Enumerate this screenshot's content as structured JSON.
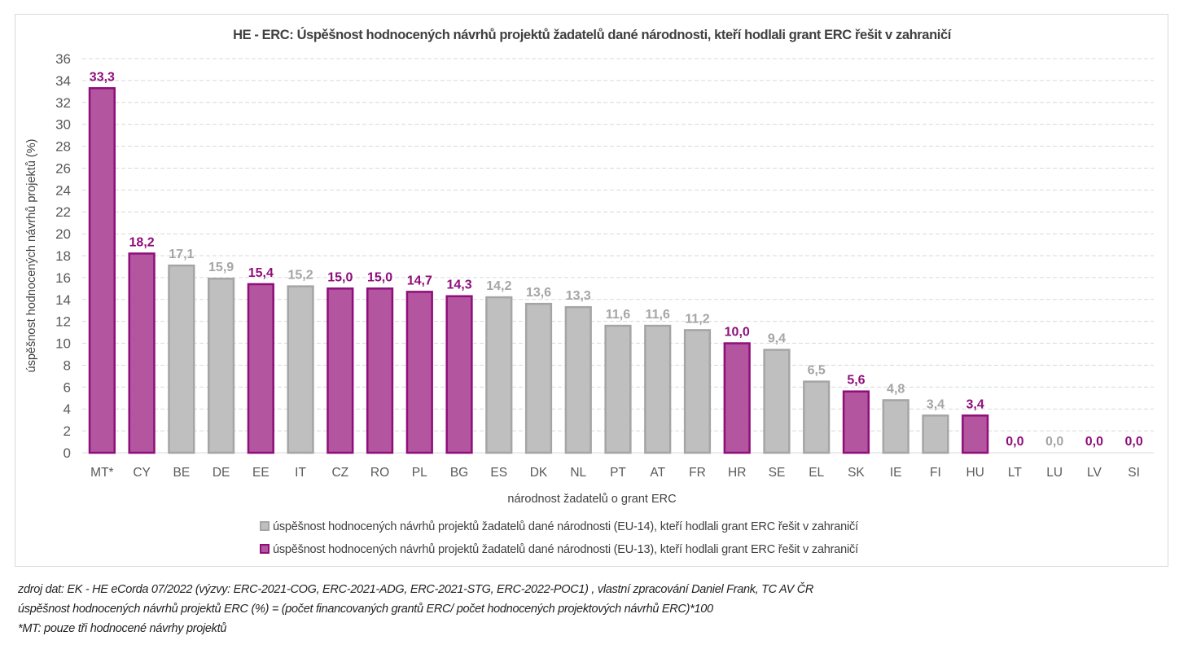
{
  "chart_data": {
    "type": "bar",
    "title": "HE - ERC: Úspěšnost hodnocených návrhů projektů žadatelů dané národnosti, kteří hodlali grant ERC řešit v zahraničí",
    "xlabel": "národnost žadatelů o grant ERC",
    "ylabel": "úspěšnost hodnocených návrhů projektů (%)",
    "ylim": [
      0,
      36
    ],
    "ytick_step": 2,
    "grid": true,
    "legend_position": "bottom",
    "categories": [
      "MT*",
      "CY",
      "BE",
      "DE",
      "EE",
      "IT",
      "CZ",
      "RO",
      "PL",
      "BG",
      "ES",
      "DK",
      "NL",
      "PT",
      "AT",
      "FR",
      "HR",
      "SE",
      "EL",
      "SK",
      "IE",
      "FI",
      "HU",
      "LT",
      "LU",
      "LV",
      "SI"
    ],
    "values": [
      33.3,
      18.2,
      17.1,
      15.9,
      15.4,
      15.2,
      15.0,
      15.0,
      14.7,
      14.3,
      14.2,
      13.6,
      13.3,
      11.6,
      11.6,
      11.2,
      10.0,
      9.4,
      6.5,
      5.6,
      4.8,
      3.4,
      3.4,
      0.0,
      0.0,
      0.0,
      0.0
    ],
    "value_labels": [
      "33,3",
      "18,2",
      "17,1",
      "15,9",
      "15,4",
      "15,2",
      "15,0",
      "15,0",
      "14,7",
      "14,3",
      "14,2",
      "13,6",
      "13,3",
      "11,6",
      "11,6",
      "11,2",
      "10,0",
      "9,4",
      "6,5",
      "5,6",
      "4,8",
      "3,4",
      "3,4",
      "0,0",
      "0,0",
      "0,0",
      "0,0"
    ],
    "groups": [
      "EU-13",
      "EU-13",
      "EU-14",
      "EU-14",
      "EU-13",
      "EU-14",
      "EU-13",
      "EU-13",
      "EU-13",
      "EU-13",
      "EU-14",
      "EU-14",
      "EU-14",
      "EU-14",
      "EU-14",
      "EU-14",
      "EU-13",
      "EU-14",
      "EU-14",
      "EU-13",
      "EU-14",
      "EU-14",
      "EU-13",
      "EU-13",
      "EU-14",
      "EU-13",
      "EU-13"
    ],
    "series": [
      {
        "name": "úspěšnost hodnocených návrhů projektů žadatelů dané národnosti (EU-14), kteří hodlali grant ERC řešit v zahraničí",
        "key": "EU-14",
        "fill": "#bfbfbf",
        "stroke": "#a5a5a5",
        "label_color": "#a5a5a5"
      },
      {
        "name": "úspěšnost hodnocených návrhů projektů žadatelů dané národnosti (EU-13), kteří hodlali grant ERC řešit v zahraničí",
        "key": "EU-13",
        "fill": "#b4559f",
        "stroke": "#8e0e7a",
        "label_color": "#8e0e7a"
      }
    ]
  },
  "footnotes": [
    "zdroj dat: EK - HE eCorda 07/2022 (výzvy: ERC-2021-COG, ERC-2021-ADG, ERC-2021-STG, ERC-2022-POC1) , vlastní zpracování Daniel Frank, TC AV ČR",
    "úspěšnost hodnocených návrhů projektů ERC (%) = (počet financovaných grantů ERC/ počet hodnocených projektových návrhů ERC)*100",
    "*MT: pouze tři hodnocené návrhy projektů"
  ]
}
